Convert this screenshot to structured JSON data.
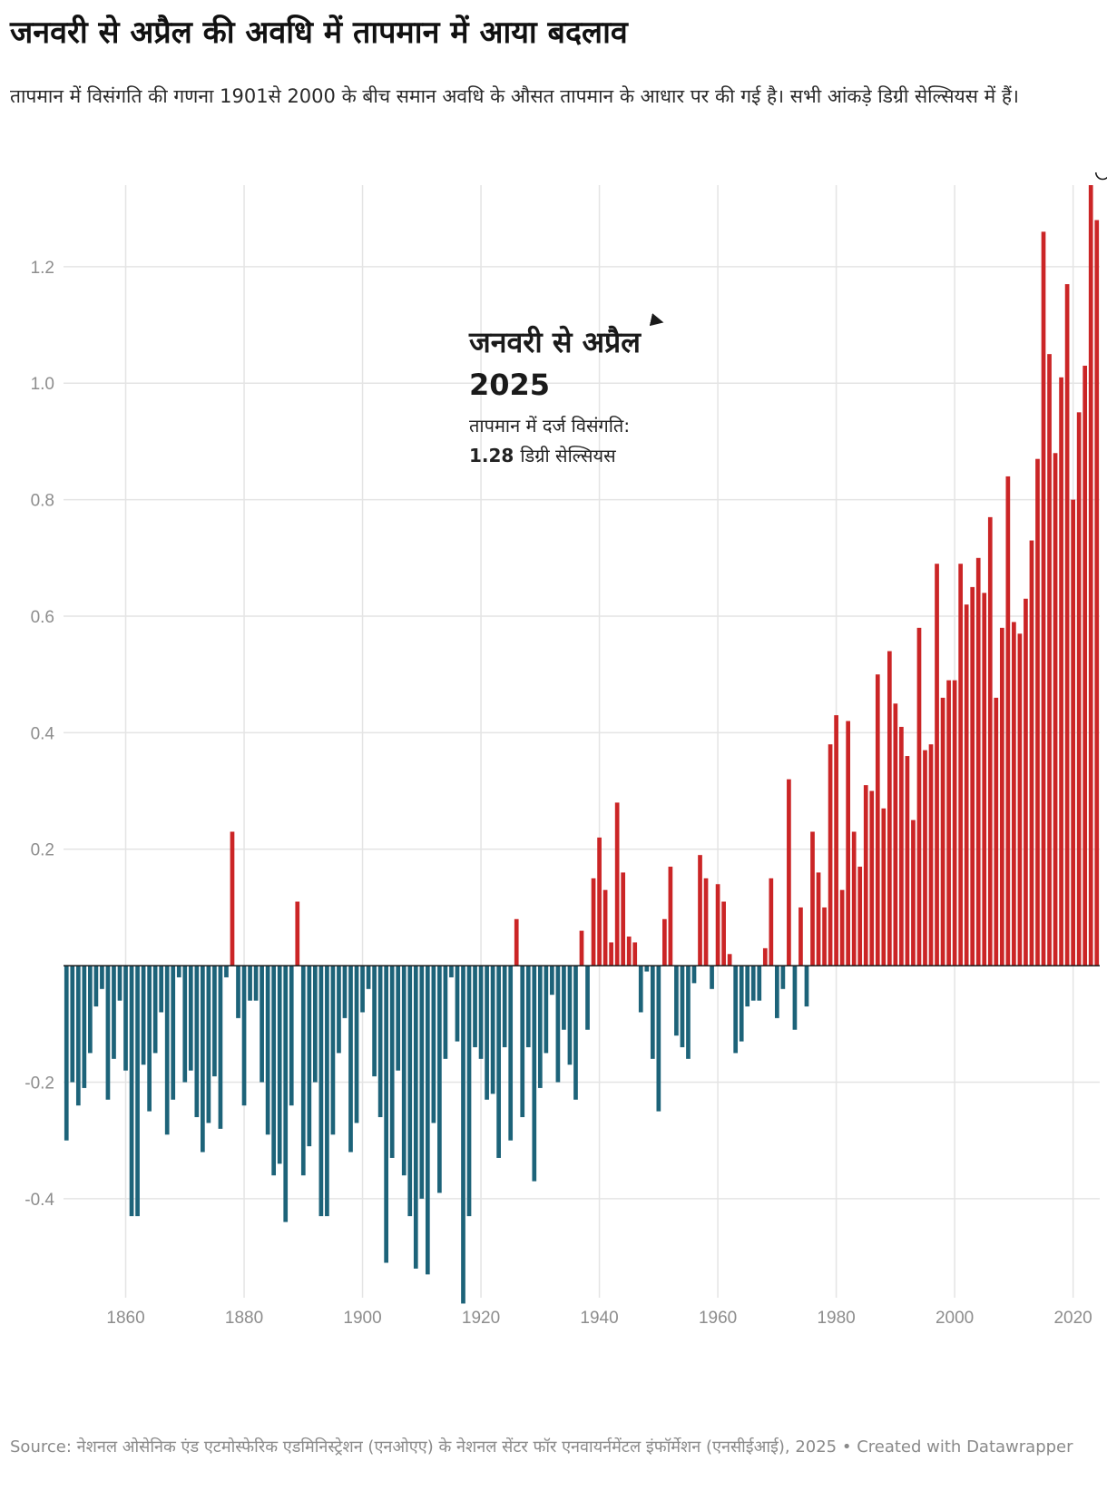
{
  "title": "जनवरी से अप्रैल की अवधि में तापमान में आया बदलाव",
  "subtitle": "तापमान में विसंगति की गणना 1901से 2000 के बीच समान अवधि के औसत तापमान के आधार पर की गई है। सभी आंकड़े डिग्री सेल्सियस में हैं।",
  "footer": "Source: नेशनल ओसेनिक एंड एटमोस्फेरिक एडमिनिस्ट्रेशन (एनओएए) के नेशनल सेंटर फॉर एनवायर्नमेंटल इंफॉर्मेशन (एनसीईआई), 2025 • Created with Datawrapper",
  "annotation": {
    "heading_line1": "जनवरी से अप्रैल",
    "heading_line2": "2025",
    "body_line1": "तापमान में दर्ज विसंगति:",
    "value": "1.28",
    "unit": "डिग्री सेल्सियस"
  },
  "colors": {
    "positive": "#cb2526",
    "negative": "#1d6379",
    "grid": "#e4e4e4",
    "baseline": "#1a1a1a"
  },
  "chart_data": {
    "type": "bar",
    "title": "जनवरी से अप्रैल की अवधि में तापमान में आया बदलाव",
    "xlabel": "",
    "ylabel": "",
    "xlim": [
      1850,
      2025
    ],
    "ylim": [
      -0.57,
      1.34
    ],
    "x_ticks": [
      1860,
      1880,
      1900,
      1920,
      1940,
      1960,
      1980,
      2000,
      2020
    ],
    "y_ticks": [
      -0.4,
      -0.2,
      0.2,
      0.4,
      0.6,
      0.8,
      1.0,
      1.2
    ],
    "y_tick_labels": [
      "-0.4",
      "-0.2",
      "0.2",
      "0.4",
      "0.6",
      "0.8",
      "1.0",
      "1.2"
    ],
    "grid": true,
    "start_year": 1850,
    "highlight_year": 2025,
    "values": [
      -0.3,
      -0.2,
      -0.24,
      -0.21,
      -0.15,
      -0.07,
      -0.04,
      -0.23,
      -0.16,
      -0.06,
      -0.18,
      -0.43,
      -0.43,
      -0.17,
      -0.25,
      -0.15,
      -0.08,
      -0.29,
      -0.23,
      -0.02,
      -0.2,
      -0.18,
      -0.26,
      -0.32,
      -0.27,
      -0.19,
      -0.28,
      -0.02,
      0.23,
      -0.09,
      -0.24,
      -0.06,
      -0.06,
      -0.2,
      -0.29,
      -0.36,
      -0.34,
      -0.44,
      -0.24,
      0.11,
      -0.36,
      -0.31,
      -0.2,
      -0.43,
      -0.43,
      -0.29,
      -0.15,
      -0.09,
      -0.32,
      -0.27,
      -0.08,
      -0.04,
      -0.19,
      -0.26,
      -0.51,
      -0.33,
      -0.18,
      -0.36,
      -0.43,
      -0.52,
      -0.4,
      -0.53,
      -0.27,
      -0.39,
      -0.16,
      -0.02,
      -0.13,
      -0.58,
      -0.43,
      -0.14,
      -0.16,
      -0.23,
      -0.22,
      -0.33,
      -0.14,
      -0.3,
      0.08,
      -0.26,
      -0.14,
      -0.37,
      -0.21,
      -0.15,
      -0.05,
      -0.2,
      -0.11,
      -0.17,
      -0.23,
      0.06,
      -0.11,
      0.15,
      0.22,
      0.13,
      0.04,
      0.28,
      0.16,
      0.05,
      0.04,
      -0.08,
      -0.01,
      -0.16,
      -0.25,
      0.08,
      0.17,
      -0.12,
      -0.14,
      -0.16,
      -0.03,
      0.19,
      0.15,
      -0.04,
      0.14,
      0.11,
      0.02,
      -0.15,
      -0.13,
      -0.07,
      -0.06,
      -0.06,
      0.03,
      0.15,
      -0.09,
      -0.04,
      0.32,
      -0.11,
      0.1,
      -0.07,
      0.23,
      0.16,
      0.1,
      0.38,
      0.43,
      0.13,
      0.42,
      0.23,
      0.17,
      0.31,
      0.3,
      0.5,
      0.27,
      0.54,
      0.45,
      0.41,
      0.36,
      0.25,
      0.58,
      0.37,
      0.38,
      0.69,
      0.46,
      0.49,
      0.49,
      0.69,
      0.62,
      0.65,
      0.7,
      0.64,
      0.77,
      0.46,
      0.58,
      0.84,
      0.59,
      0.57,
      0.63,
      0.73,
      0.87,
      1.26,
      1.05,
      0.88,
      1.01,
      1.17,
      0.8,
      0.95,
      1.03,
      1.34,
      1.28
    ]
  }
}
